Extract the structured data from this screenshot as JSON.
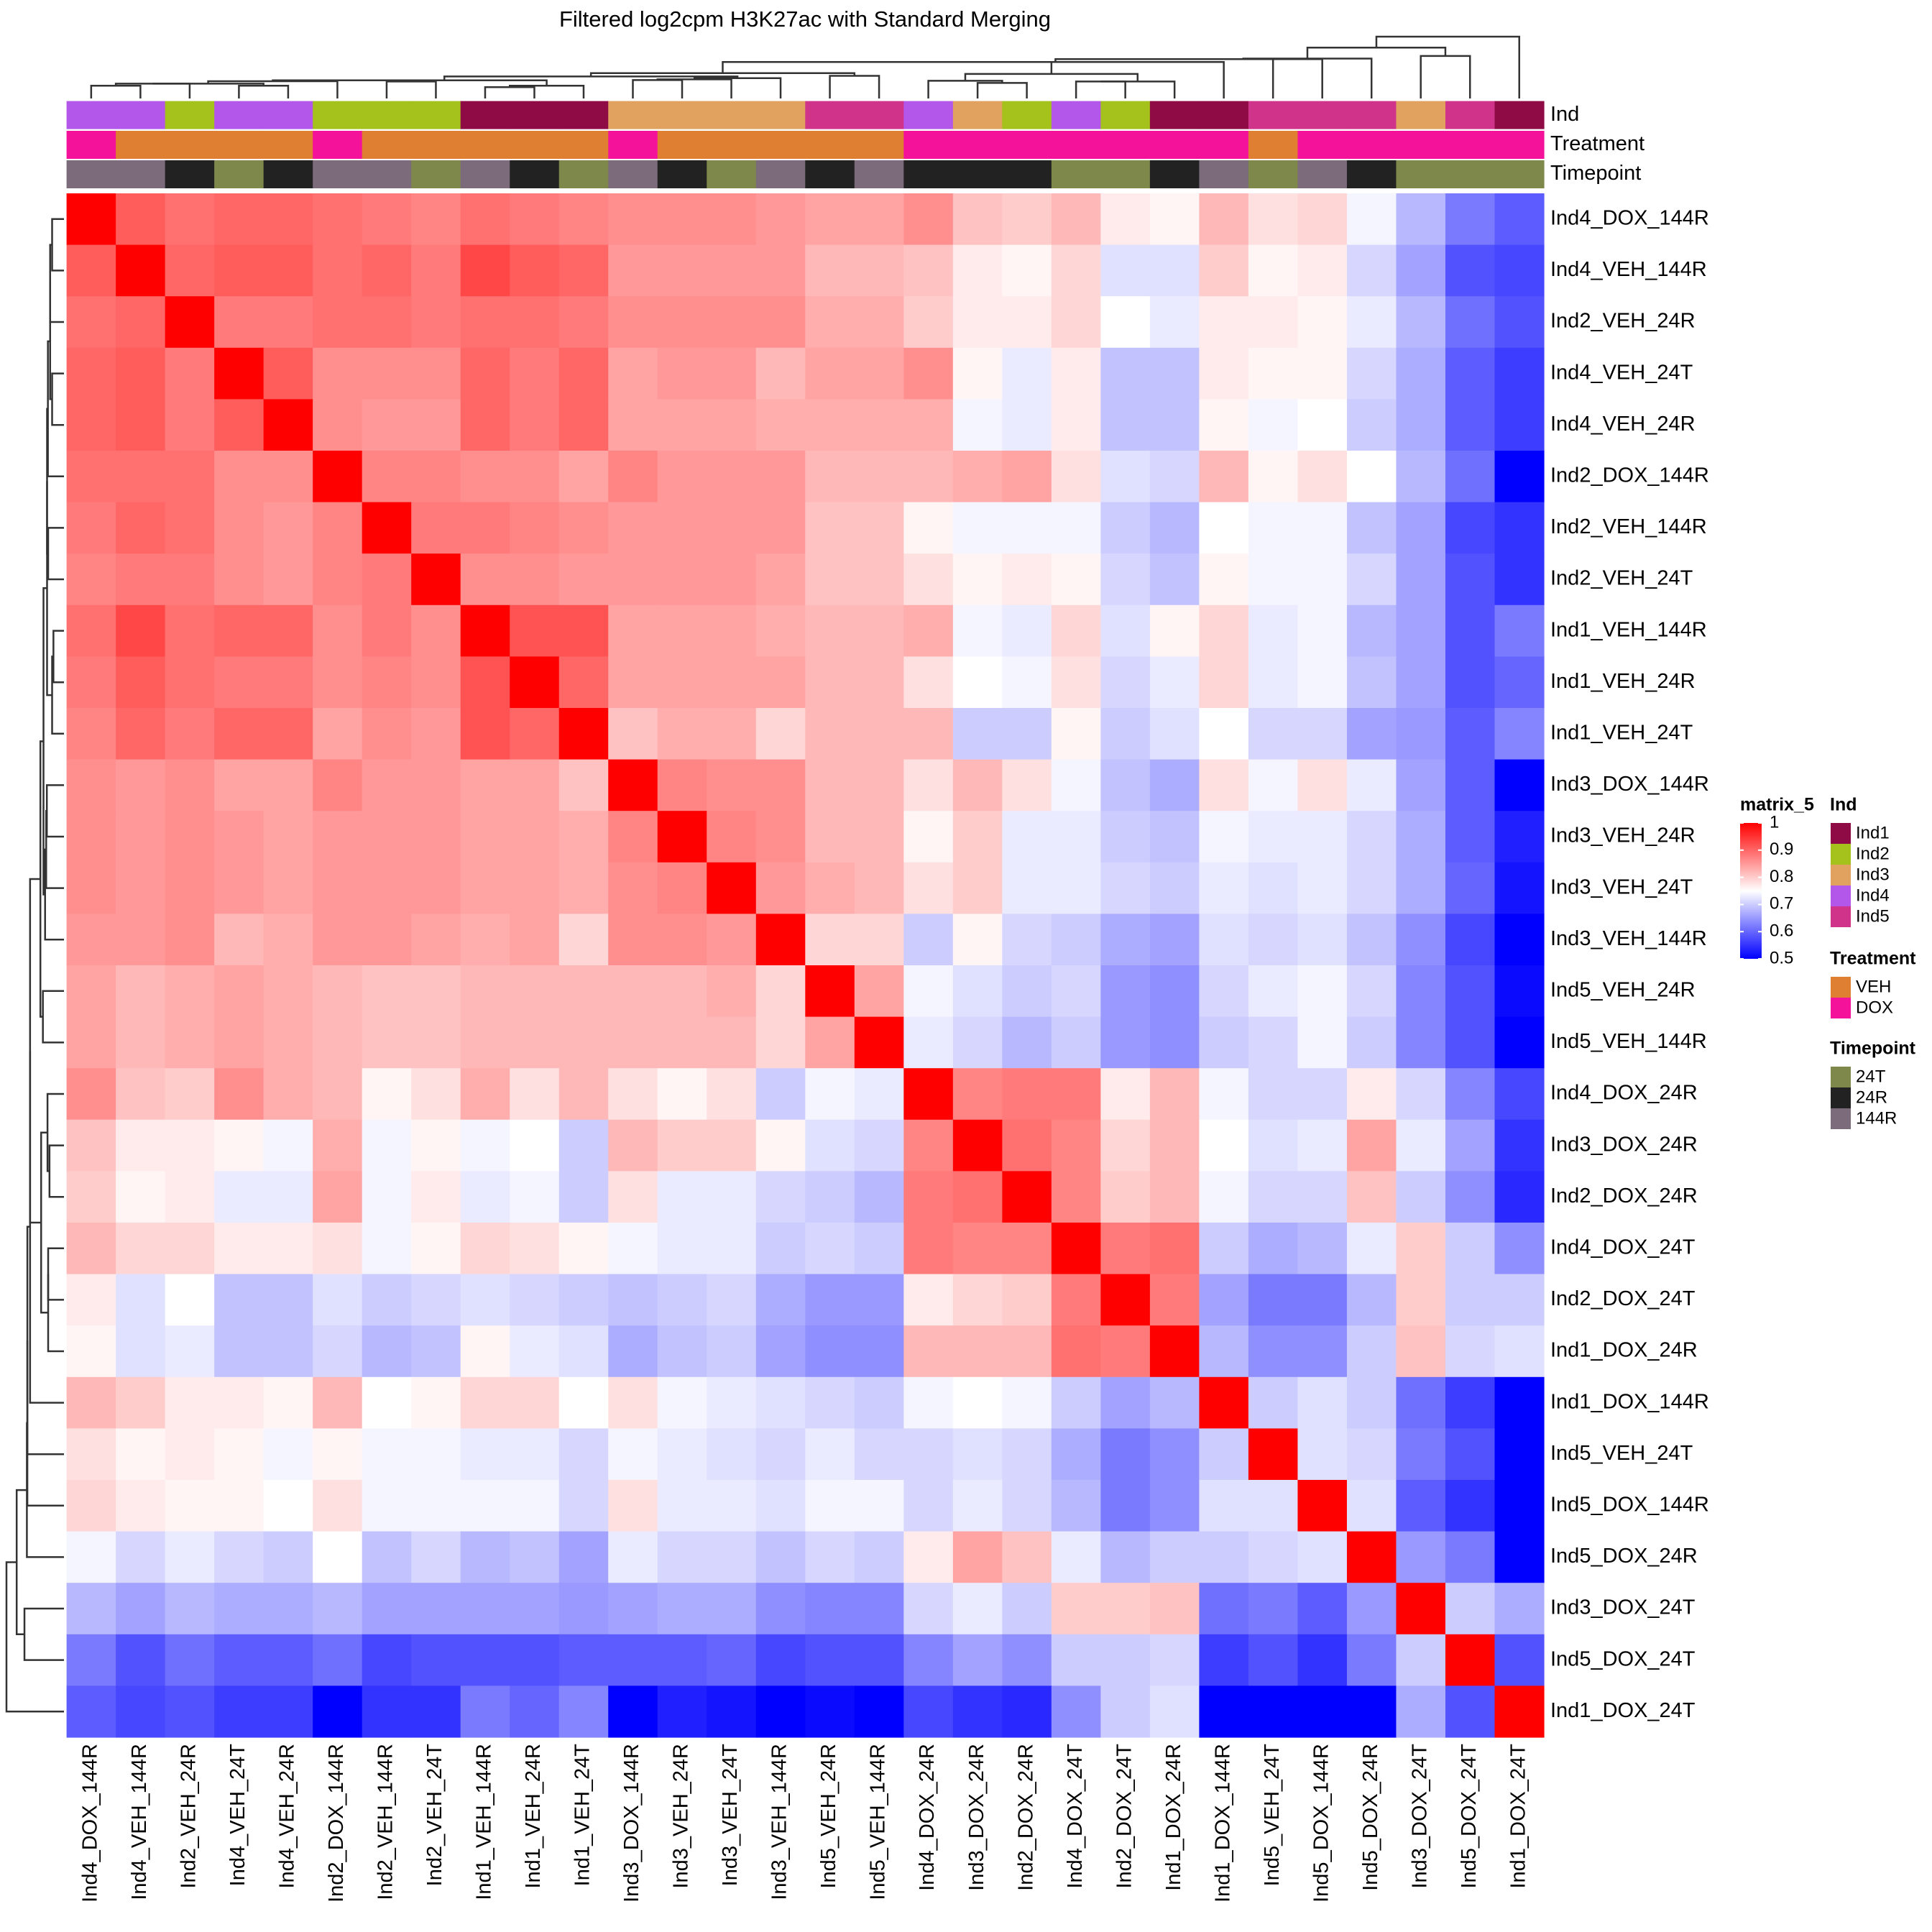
{
  "chart_data": {
    "type": "heatmap",
    "title": "Filtered log2cpm H3K27ac with Standard Merging",
    "labels": [
      "Ind4_DOX_144R",
      "Ind4_VEH_144R",
      "Ind2_VEH_24R",
      "Ind4_VEH_24T",
      "Ind4_VEH_24R",
      "Ind2_DOX_144R",
      "Ind2_VEH_144R",
      "Ind2_VEH_24T",
      "Ind1_VEH_144R",
      "Ind1_VEH_24R",
      "Ind1_VEH_24T",
      "Ind3_DOX_144R",
      "Ind3_VEH_24R",
      "Ind3_VEH_24T",
      "Ind3_VEH_144R",
      "Ind5_VEH_24R",
      "Ind5_VEH_144R",
      "Ind4_DOX_24R",
      "Ind3_DOX_24R",
      "Ind2_DOX_24R",
      "Ind4_DOX_24T",
      "Ind2_DOX_24T",
      "Ind1_DOX_24R",
      "Ind1_DOX_144R",
      "Ind5_VEH_24T",
      "Ind5_DOX_144R",
      "Ind5_DOX_24R",
      "Ind3_DOX_24T",
      "Ind5_DOX_24T",
      "Ind1_DOX_24T"
    ],
    "matrix": [
      [
        1,
        0.91,
        0.89,
        0.9,
        0.9,
        0.89,
        0.88,
        0.87,
        0.89,
        0.88,
        0.87,
        0.86,
        0.86,
        0.86,
        0.85,
        0.84,
        0.84,
        0.86,
        0.81,
        0.8,
        0.82,
        0.77,
        0.76,
        0.82,
        0.78,
        0.79,
        0.74,
        0.68,
        0.62,
        0.59
      ],
      [
        0.91,
        1,
        0.9,
        0.91,
        0.91,
        0.89,
        0.9,
        0.88,
        0.93,
        0.91,
        0.9,
        0.85,
        0.85,
        0.85,
        0.85,
        0.82,
        0.82,
        0.81,
        0.77,
        0.76,
        0.79,
        0.72,
        0.72,
        0.8,
        0.76,
        0.77,
        0.71,
        0.66,
        0.58,
        0.57
      ],
      [
        0.89,
        0.9,
        1,
        0.88,
        0.88,
        0.89,
        0.89,
        0.88,
        0.89,
        0.89,
        0.88,
        0.86,
        0.86,
        0.86,
        0.86,
        0.83,
        0.83,
        0.8,
        0.77,
        0.77,
        0.79,
        0.75,
        0.73,
        0.77,
        0.77,
        0.76,
        0.73,
        0.68,
        0.61,
        0.58
      ],
      [
        0.9,
        0.91,
        0.88,
        1,
        0.91,
        0.86,
        0.86,
        0.86,
        0.9,
        0.88,
        0.9,
        0.84,
        0.85,
        0.85,
        0.82,
        0.84,
        0.84,
        0.86,
        0.76,
        0.73,
        0.77,
        0.69,
        0.69,
        0.77,
        0.76,
        0.76,
        0.71,
        0.67,
        0.59,
        0.56
      ],
      [
        0.9,
        0.91,
        0.88,
        0.91,
        1,
        0.86,
        0.85,
        0.85,
        0.9,
        0.88,
        0.9,
        0.84,
        0.84,
        0.84,
        0.83,
        0.83,
        0.83,
        0.83,
        0.74,
        0.73,
        0.77,
        0.69,
        0.69,
        0.76,
        0.74,
        0.75,
        0.7,
        0.67,
        0.59,
        0.56
      ],
      [
        0.89,
        0.89,
        0.89,
        0.86,
        0.86,
        1,
        0.87,
        0.87,
        0.86,
        0.86,
        0.84,
        0.87,
        0.85,
        0.85,
        0.85,
        0.82,
        0.82,
        0.82,
        0.83,
        0.84,
        0.78,
        0.72,
        0.71,
        0.82,
        0.76,
        0.78,
        0.75,
        0.68,
        0.61,
        0.5
      ],
      [
        0.88,
        0.9,
        0.89,
        0.86,
        0.85,
        0.87,
        1,
        0.88,
        0.88,
        0.87,
        0.86,
        0.85,
        0.85,
        0.85,
        0.85,
        0.81,
        0.81,
        0.76,
        0.74,
        0.74,
        0.74,
        0.7,
        0.68,
        0.75,
        0.74,
        0.74,
        0.69,
        0.66,
        0.57,
        0.55
      ],
      [
        0.87,
        0.88,
        0.88,
        0.86,
        0.85,
        0.87,
        0.88,
        1,
        0.86,
        0.86,
        0.85,
        0.85,
        0.85,
        0.85,
        0.84,
        0.81,
        0.81,
        0.78,
        0.76,
        0.77,
        0.76,
        0.71,
        0.69,
        0.76,
        0.74,
        0.74,
        0.71,
        0.66,
        0.58,
        0.55
      ],
      [
        0.89,
        0.93,
        0.89,
        0.9,
        0.9,
        0.86,
        0.88,
        0.86,
        1,
        0.92,
        0.92,
        0.84,
        0.84,
        0.84,
        0.83,
        0.82,
        0.82,
        0.83,
        0.74,
        0.73,
        0.79,
        0.72,
        0.76,
        0.79,
        0.73,
        0.74,
        0.68,
        0.66,
        0.58,
        0.62
      ],
      [
        0.88,
        0.91,
        0.89,
        0.88,
        0.88,
        0.86,
        0.87,
        0.86,
        0.92,
        1,
        0.9,
        0.84,
        0.84,
        0.84,
        0.84,
        0.82,
        0.82,
        0.78,
        0.75,
        0.74,
        0.78,
        0.71,
        0.73,
        0.79,
        0.73,
        0.74,
        0.69,
        0.66,
        0.58,
        0.6
      ],
      [
        0.87,
        0.9,
        0.88,
        0.9,
        0.9,
        0.84,
        0.86,
        0.85,
        0.92,
        0.9,
        1,
        0.81,
        0.83,
        0.83,
        0.79,
        0.82,
        0.82,
        0.82,
        0.7,
        0.7,
        0.76,
        0.7,
        0.72,
        0.75,
        0.71,
        0.71,
        0.66,
        0.65,
        0.59,
        0.63
      ],
      [
        0.86,
        0.85,
        0.86,
        0.84,
        0.84,
        0.87,
        0.85,
        0.85,
        0.84,
        0.84,
        0.81,
        1,
        0.87,
        0.86,
        0.86,
        0.82,
        0.82,
        0.78,
        0.82,
        0.78,
        0.74,
        0.69,
        0.67,
        0.78,
        0.74,
        0.78,
        0.73,
        0.66,
        0.59,
        0.5
      ],
      [
        0.86,
        0.85,
        0.86,
        0.85,
        0.84,
        0.85,
        0.85,
        0.85,
        0.84,
        0.84,
        0.83,
        0.87,
        1,
        0.87,
        0.86,
        0.82,
        0.82,
        0.76,
        0.8,
        0.73,
        0.73,
        0.7,
        0.69,
        0.74,
        0.73,
        0.73,
        0.71,
        0.67,
        0.59,
        0.53
      ],
      [
        0.86,
        0.85,
        0.86,
        0.85,
        0.84,
        0.85,
        0.85,
        0.85,
        0.84,
        0.84,
        0.83,
        0.86,
        0.87,
        1,
        0.85,
        0.83,
        0.82,
        0.78,
        0.8,
        0.73,
        0.73,
        0.71,
        0.7,
        0.73,
        0.72,
        0.73,
        0.71,
        0.67,
        0.6,
        0.52
      ],
      [
        0.85,
        0.85,
        0.86,
        0.82,
        0.83,
        0.85,
        0.85,
        0.84,
        0.83,
        0.84,
        0.79,
        0.86,
        0.86,
        0.85,
        1,
        0.79,
        0.79,
        0.7,
        0.76,
        0.71,
        0.7,
        0.67,
        0.66,
        0.72,
        0.71,
        0.72,
        0.69,
        0.64,
        0.57,
        0.5
      ],
      [
        0.84,
        0.82,
        0.83,
        0.84,
        0.83,
        0.82,
        0.81,
        0.81,
        0.82,
        0.82,
        0.82,
        0.82,
        0.82,
        0.83,
        0.79,
        1,
        0.84,
        0.74,
        0.72,
        0.7,
        0.71,
        0.65,
        0.64,
        0.71,
        0.73,
        0.74,
        0.71,
        0.63,
        0.58,
        0.51
      ],
      [
        0.84,
        0.82,
        0.83,
        0.84,
        0.83,
        0.82,
        0.81,
        0.81,
        0.82,
        0.82,
        0.82,
        0.82,
        0.82,
        0.82,
        0.79,
        0.84,
        1,
        0.73,
        0.71,
        0.68,
        0.7,
        0.65,
        0.64,
        0.7,
        0.71,
        0.74,
        0.7,
        0.63,
        0.58,
        0.5
      ],
      [
        0.86,
        0.81,
        0.8,
        0.86,
        0.83,
        0.82,
        0.76,
        0.78,
        0.83,
        0.78,
        0.82,
        0.78,
        0.76,
        0.78,
        0.7,
        0.74,
        0.73,
        1,
        0.87,
        0.88,
        0.88,
        0.77,
        0.82,
        0.74,
        0.71,
        0.71,
        0.77,
        0.71,
        0.63,
        0.57
      ],
      [
        0.81,
        0.77,
        0.77,
        0.76,
        0.74,
        0.83,
        0.74,
        0.76,
        0.74,
        0.75,
        0.7,
        0.82,
        0.8,
        0.8,
        0.76,
        0.72,
        0.71,
        0.87,
        1,
        0.89,
        0.87,
        0.79,
        0.82,
        0.75,
        0.72,
        0.73,
        0.84,
        0.73,
        0.66,
        0.55
      ],
      [
        0.8,
        0.76,
        0.77,
        0.73,
        0.73,
        0.84,
        0.74,
        0.77,
        0.73,
        0.74,
        0.7,
        0.78,
        0.73,
        0.73,
        0.71,
        0.7,
        0.68,
        0.88,
        0.89,
        1,
        0.87,
        0.8,
        0.82,
        0.74,
        0.71,
        0.71,
        0.81,
        0.7,
        0.64,
        0.54
      ],
      [
        0.82,
        0.79,
        0.79,
        0.77,
        0.77,
        0.78,
        0.74,
        0.76,
        0.79,
        0.78,
        0.76,
        0.74,
        0.73,
        0.73,
        0.7,
        0.71,
        0.7,
        0.88,
        0.87,
        0.87,
        1,
        0.88,
        0.89,
        0.7,
        0.67,
        0.68,
        0.73,
        0.8,
        0.7,
        0.64
      ],
      [
        0.77,
        0.72,
        0.75,
        0.69,
        0.69,
        0.72,
        0.7,
        0.71,
        0.72,
        0.71,
        0.7,
        0.69,
        0.7,
        0.71,
        0.67,
        0.65,
        0.65,
        0.77,
        0.79,
        0.8,
        0.88,
        1,
        0.88,
        0.66,
        0.62,
        0.62,
        0.68,
        0.8,
        0.7,
        0.7
      ],
      [
        0.76,
        0.72,
        0.73,
        0.69,
        0.69,
        0.71,
        0.68,
        0.69,
        0.76,
        0.73,
        0.72,
        0.67,
        0.69,
        0.7,
        0.66,
        0.64,
        0.64,
        0.82,
        0.82,
        0.82,
        0.89,
        0.88,
        1,
        0.68,
        0.64,
        0.64,
        0.7,
        0.81,
        0.71,
        0.72
      ],
      [
        0.82,
        0.8,
        0.77,
        0.77,
        0.76,
        0.82,
        0.75,
        0.76,
        0.79,
        0.79,
        0.75,
        0.78,
        0.74,
        0.73,
        0.72,
        0.71,
        0.7,
        0.74,
        0.75,
        0.74,
        0.7,
        0.66,
        0.68,
        1,
        0.7,
        0.72,
        0.7,
        0.61,
        0.56,
        0.5
      ],
      [
        0.78,
        0.76,
        0.77,
        0.76,
        0.74,
        0.76,
        0.74,
        0.74,
        0.73,
        0.73,
        0.71,
        0.74,
        0.73,
        0.72,
        0.71,
        0.73,
        0.71,
        0.71,
        0.72,
        0.71,
        0.67,
        0.62,
        0.64,
        0.7,
        1,
        0.72,
        0.71,
        0.62,
        0.58,
        0.5
      ],
      [
        0.79,
        0.77,
        0.76,
        0.76,
        0.75,
        0.78,
        0.74,
        0.74,
        0.74,
        0.74,
        0.71,
        0.78,
        0.73,
        0.73,
        0.72,
        0.74,
        0.74,
        0.71,
        0.73,
        0.71,
        0.68,
        0.62,
        0.64,
        0.72,
        0.72,
        1,
        0.72,
        0.59,
        0.55,
        0.5
      ],
      [
        0.74,
        0.71,
        0.73,
        0.71,
        0.7,
        0.75,
        0.69,
        0.71,
        0.68,
        0.69,
        0.66,
        0.73,
        0.71,
        0.71,
        0.69,
        0.71,
        0.7,
        0.77,
        0.84,
        0.81,
        0.73,
        0.68,
        0.7,
        0.7,
        0.71,
        0.72,
        1,
        0.65,
        0.62,
        0.5
      ],
      [
        0.68,
        0.66,
        0.68,
        0.67,
        0.67,
        0.68,
        0.66,
        0.66,
        0.66,
        0.66,
        0.65,
        0.66,
        0.67,
        0.67,
        0.64,
        0.63,
        0.63,
        0.71,
        0.73,
        0.7,
        0.8,
        0.8,
        0.81,
        0.61,
        0.62,
        0.59,
        0.65,
        1,
        0.7,
        0.67
      ],
      [
        0.62,
        0.58,
        0.61,
        0.59,
        0.59,
        0.61,
        0.57,
        0.58,
        0.58,
        0.58,
        0.59,
        0.59,
        0.59,
        0.6,
        0.57,
        0.58,
        0.58,
        0.63,
        0.66,
        0.64,
        0.7,
        0.7,
        0.71,
        0.56,
        0.58,
        0.55,
        0.62,
        0.7,
        1,
        0.58
      ],
      [
        0.59,
        0.57,
        0.58,
        0.56,
        0.56,
        0.5,
        0.55,
        0.55,
        0.62,
        0.6,
        0.63,
        0.5,
        0.53,
        0.52,
        0.5,
        0.51,
        0.5,
        0.57,
        0.55,
        0.54,
        0.64,
        0.7,
        0.72,
        0.5,
        0.5,
        0.5,
        0.5,
        0.67,
        0.58,
        1
      ]
    ],
    "color_scale": {
      "breaks": [
        0.5,
        0.75,
        1
      ],
      "colors": [
        "#0000FF",
        "#FFFFFF",
        "#FF0000"
      ]
    },
    "legend_title": "matrix_5",
    "legend_ticks": [
      1,
      0.9,
      0.8,
      0.7,
      0.6,
      0.5
    ],
    "annotations": [
      {
        "name": "Ind",
        "values": [
          "Ind4",
          "Ind4",
          "Ind2",
          "Ind4",
          "Ind4",
          "Ind2",
          "Ind2",
          "Ind2",
          "Ind1",
          "Ind1",
          "Ind1",
          "Ind3",
          "Ind3",
          "Ind3",
          "Ind3",
          "Ind5",
          "Ind5",
          "Ind4",
          "Ind3",
          "Ind2",
          "Ind4",
          "Ind2",
          "Ind1",
          "Ind1",
          "Ind5",
          "Ind5",
          "Ind5",
          "Ind3",
          "Ind5",
          "Ind1"
        ],
        "levels": [
          {
            "name": "Ind1",
            "color": "#8E0B45"
          },
          {
            "name": "Ind2",
            "color": "#A4C21B"
          },
          {
            "name": "Ind3",
            "color": "#E0A25E"
          },
          {
            "name": "Ind4",
            "color": "#B257EA"
          },
          {
            "name": "Ind5",
            "color": "#D0338A"
          }
        ]
      },
      {
        "name": "Treatment",
        "values": [
          "DOX",
          "VEH",
          "VEH",
          "VEH",
          "VEH",
          "DOX",
          "VEH",
          "VEH",
          "VEH",
          "VEH",
          "VEH",
          "DOX",
          "VEH",
          "VEH",
          "VEH",
          "VEH",
          "VEH",
          "DOX",
          "DOX",
          "DOX",
          "DOX",
          "DOX",
          "DOX",
          "DOX",
          "VEH",
          "DOX",
          "DOX",
          "DOX",
          "DOX",
          "DOX"
        ],
        "levels": [
          {
            "name": "VEH",
            "color": "#DF7F31"
          },
          {
            "name": "DOX",
            "color": "#F5129A"
          }
        ]
      },
      {
        "name": "Timepoint",
        "values": [
          "144R",
          "144R",
          "24R",
          "24T",
          "24R",
          "144R",
          "144R",
          "24T",
          "144R",
          "24R",
          "24T",
          "144R",
          "24R",
          "24T",
          "144R",
          "24R",
          "144R",
          "24R",
          "24R",
          "24R",
          "24T",
          "24T",
          "24R",
          "144R",
          "24T",
          "144R",
          "24R",
          "24T",
          "24T",
          "24T"
        ],
        "levels": [
          {
            "name": "24T",
            "color": "#7F884B"
          },
          {
            "name": "24R",
            "color": "#222222"
          },
          {
            "name": "144R",
            "color": "#7B6B7B"
          }
        ]
      }
    ]
  }
}
